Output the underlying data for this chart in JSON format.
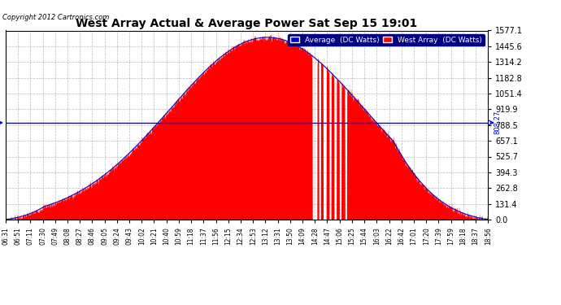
{
  "title": "West Array Actual & Average Power Sat Sep 15 19:01",
  "copyright": "Copyright 2012 Cartronics.com",
  "ymax": 1577.1,
  "ymin": 0.0,
  "yticks": [
    0.0,
    131.4,
    262.8,
    394.3,
    525.7,
    657.1,
    788.5,
    919.9,
    1051.4,
    1182.8,
    1314.2,
    1445.6,
    1577.1
  ],
  "hline_value": 808.27,
  "hline_label": "808.27",
  "west_array_color": "#FF0000",
  "average_color": "#0000BB",
  "background_color": "#FFFFFF",
  "plot_bg_color": "#FFFFFF",
  "grid_color": "#AAAAAA",
  "legend_avg_color": "#0000CC",
  "legend_west_color": "#FF0000",
  "time_labels": [
    "06:31",
    "06:51",
    "07:11",
    "07:30",
    "07:49",
    "08:08",
    "08:27",
    "08:46",
    "09:05",
    "09:24",
    "09:43",
    "10:02",
    "10:21",
    "10:40",
    "10:59",
    "11:18",
    "11:37",
    "11:56",
    "12:15",
    "12:34",
    "12:53",
    "13:12",
    "13:31",
    "13:50",
    "14:09",
    "14:28",
    "14:47",
    "15:06",
    "15:25",
    "15:44",
    "16:03",
    "16:22",
    "16:42",
    "17:01",
    "17:20",
    "17:39",
    "17:59",
    "18:18",
    "18:37",
    "18:56"
  ]
}
